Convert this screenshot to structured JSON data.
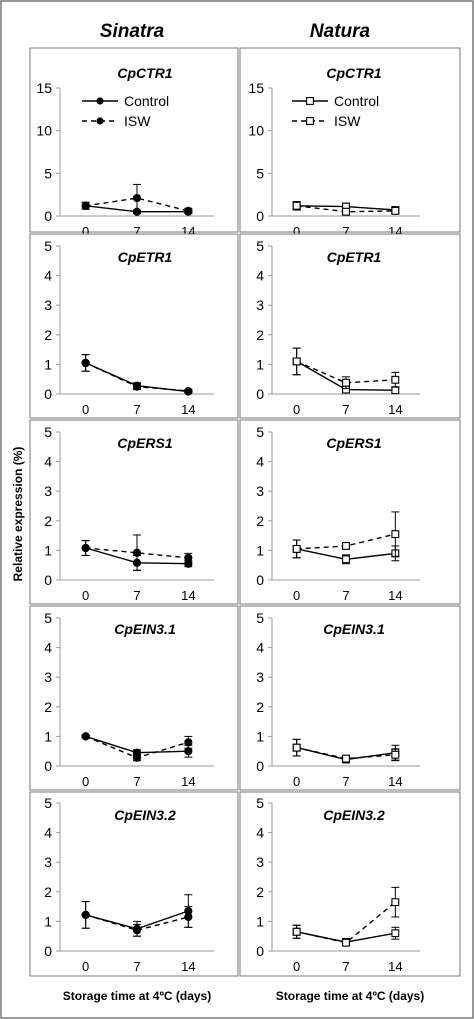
{
  "columns": [
    "Sinatra",
    "Natura"
  ],
  "ylabel": "Relative expression (%)",
  "xlabel": "Storage time at 4ºC (days)",
  "colors": {
    "line": "#000000",
    "frame": "#777777",
    "axis": "#999999",
    "fill_closed": "#000000",
    "fill_open": "#ffffff"
  },
  "legend": {
    "control": "Control",
    "isw": "ISW"
  },
  "chart_data": [
    {
      "type": "line",
      "title": "CpCTR1",
      "column": "Sinatra",
      "categories": [
        "0",
        "7",
        "14"
      ],
      "ylim": [
        0,
        15
      ],
      "yticks": [
        "0",
        "5",
        "10",
        "15"
      ],
      "marker": "filled-circle",
      "legend": "top-left",
      "series": [
        {
          "name": "Control",
          "values": [
            1.2,
            0.5,
            0.5
          ],
          "err": [
            0.4,
            0.2,
            0.2
          ]
        },
        {
          "name": "ISW",
          "values": [
            1.2,
            2.1,
            0.6
          ],
          "err": [
            0.4,
            1.6,
            0.3
          ]
        }
      ]
    },
    {
      "type": "line",
      "title": "CpCTR1",
      "column": "Natura",
      "categories": [
        "0",
        "7",
        "14"
      ],
      "ylim": [
        0,
        15
      ],
      "yticks": [
        "0",
        "5",
        "10",
        "15"
      ],
      "marker": "open-square",
      "legend": "top-left",
      "series": [
        {
          "name": "Control",
          "values": [
            1.2,
            1.1,
            0.7
          ],
          "err": [
            0.5,
            0.4,
            0.3
          ]
        },
        {
          "name": "ISW",
          "values": [
            1.2,
            0.5,
            0.6
          ],
          "err": [
            0.5,
            0.3,
            0.3
          ]
        }
      ]
    },
    {
      "type": "line",
      "title": "CpETR1",
      "column": "Sinatra",
      "categories": [
        "0",
        "7",
        "14"
      ],
      "ylim": [
        0,
        5
      ],
      "yticks": [
        "0",
        "1",
        "2",
        "3",
        "4",
        "5"
      ],
      "marker": "filled-circle",
      "series": [
        {
          "name": "Control",
          "values": [
            1.05,
            0.28,
            0.08
          ],
          "err": [
            0.28,
            0.1,
            0.05
          ]
        },
        {
          "name": "ISW",
          "values": [
            1.05,
            0.25,
            0.1
          ],
          "err": [
            0.28,
            0.1,
            0.05
          ]
        }
      ]
    },
    {
      "type": "line",
      "title": "CpETR1",
      "column": "Natura",
      "categories": [
        "0",
        "7",
        "14"
      ],
      "ylim": [
        0,
        5
      ],
      "yticks": [
        "0",
        "1",
        "2",
        "3",
        "4",
        "5"
      ],
      "marker": "open-square",
      "series": [
        {
          "name": "Control",
          "values": [
            1.1,
            0.15,
            0.13
          ],
          "err": [
            0.45,
            0.1,
            0.1
          ]
        },
        {
          "name": "ISW",
          "values": [
            1.1,
            0.38,
            0.48
          ],
          "err": [
            0.45,
            0.2,
            0.25
          ]
        }
      ]
    },
    {
      "type": "line",
      "title": "CpERS1",
      "column": "Sinatra",
      "categories": [
        "0",
        "7",
        "14"
      ],
      "ylim": [
        0,
        5
      ],
      "yticks": [
        "0",
        "1",
        "2",
        "3",
        "4",
        "5"
      ],
      "marker": "filled-circle",
      "series": [
        {
          "name": "Control",
          "values": [
            1.08,
            0.58,
            0.55
          ],
          "err": [
            0.25,
            0.25,
            0.1
          ]
        },
        {
          "name": "ISW",
          "values": [
            1.08,
            0.92,
            0.75
          ],
          "err": [
            0.25,
            0.6,
            0.15
          ]
        }
      ]
    },
    {
      "type": "line",
      "title": "CpERS1",
      "column": "Natura",
      "categories": [
        "0",
        "7",
        "14"
      ],
      "ylim": [
        0,
        5
      ],
      "yticks": [
        "0",
        "1",
        "2",
        "3",
        "4",
        "5"
      ],
      "marker": "open-square",
      "series": [
        {
          "name": "Control",
          "values": [
            1.05,
            0.7,
            0.9
          ],
          "err": [
            0.3,
            0.15,
            0.25
          ]
        },
        {
          "name": "ISW",
          "values": [
            1.05,
            1.15,
            1.55
          ],
          "err": [
            0.3,
            0.1,
            0.75
          ]
        }
      ]
    },
    {
      "type": "line",
      "title": "CpEIN3.1",
      "column": "Sinatra",
      "categories": [
        "0",
        "7",
        "14"
      ],
      "ylim": [
        0,
        5
      ],
      "yticks": [
        "0",
        "1",
        "2",
        "3",
        "4",
        "5"
      ],
      "marker": "filled-circle",
      "series": [
        {
          "name": "Control",
          "values": [
            1.0,
            0.45,
            0.5
          ],
          "err": [
            0.05,
            0.1,
            0.2
          ]
        },
        {
          "name": "ISW",
          "values": [
            1.0,
            0.28,
            0.8
          ],
          "err": [
            0.05,
            0.1,
            0.2
          ]
        }
      ]
    },
    {
      "type": "line",
      "title": "CpEIN3.1",
      "column": "Natura",
      "categories": [
        "0",
        "7",
        "14"
      ],
      "ylim": [
        0,
        5
      ],
      "yticks": [
        "0",
        "1",
        "2",
        "3",
        "4",
        "5"
      ],
      "marker": "open-square",
      "series": [
        {
          "name": "Control",
          "values": [
            0.62,
            0.22,
            0.45
          ],
          "err": [
            0.28,
            0.1,
            0.25
          ]
        },
        {
          "name": "ISW",
          "values": [
            0.62,
            0.25,
            0.38
          ],
          "err": [
            0.28,
            0.1,
            0.2
          ]
        }
      ]
    },
    {
      "type": "line",
      "title": "CpEIN3.2",
      "column": "Sinatra",
      "categories": [
        "0",
        "7",
        "14"
      ],
      "ylim": [
        0,
        5
      ],
      "yticks": [
        "0",
        "1",
        "2",
        "3",
        "4",
        "5"
      ],
      "marker": "filled-circle",
      "series": [
        {
          "name": "Control",
          "values": [
            1.22,
            0.75,
            1.35
          ],
          "err": [
            0.45,
            0.25,
            0.55
          ]
        },
        {
          "name": "ISW",
          "values": [
            1.22,
            0.7,
            1.15
          ],
          "err": [
            0.45,
            0.2,
            0.35
          ]
        }
      ]
    },
    {
      "type": "line",
      "title": "CpEIN3.2",
      "column": "Natura",
      "categories": [
        "0",
        "7",
        "14"
      ],
      "ylim": [
        0,
        5
      ],
      "yticks": [
        "0",
        "1",
        "2",
        "3",
        "4",
        "5"
      ],
      "marker": "open-square",
      "series": [
        {
          "name": "Control",
          "values": [
            0.65,
            0.3,
            0.6
          ],
          "err": [
            0.22,
            0.12,
            0.2
          ]
        },
        {
          "name": "ISW",
          "values": [
            0.65,
            0.28,
            1.65
          ],
          "err": [
            0.22,
            0.1,
            0.5
          ]
        }
      ]
    }
  ]
}
